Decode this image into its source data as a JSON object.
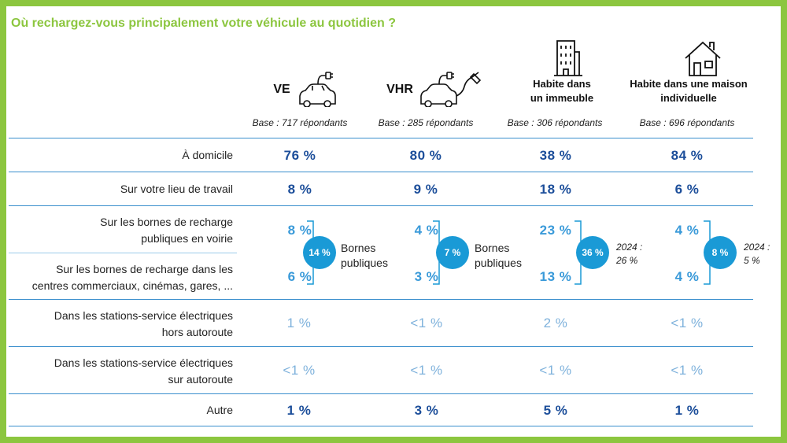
{
  "chart_data": {
    "type": "table",
    "title": "Où rechargez-vous principalement votre véhicule au quotidien ?",
    "columns": [
      {
        "name": "VE",
        "base": "Base : 717 répondants"
      },
      {
        "name": "VHR",
        "base": "Base : 285 répondants"
      },
      {
        "name": "Habite dans\nun immeuble",
        "base": "Base : 306 répondants"
      },
      {
        "name": "Habite dans une maison\nindividuelle",
        "base": "Base : 696 répondants"
      }
    ],
    "rows": [
      {
        "label": "À domicile",
        "values": [
          "76 %",
          "80 %",
          "38 %",
          "84 %"
        ]
      },
      {
        "label": "Sur votre lieu de travail",
        "values": [
          "8 %",
          "9 %",
          "18 %",
          "6 %"
        ]
      },
      {
        "label": "Sur les bornes de recharge\npubliques en voirie",
        "values": [
          "8 %",
          "4 %",
          "23 %",
          "4 %"
        ]
      },
      {
        "label": "Sur les bornes de recharge dans les\ncentres commerciaux, cinémas, gares, ...",
        "values": [
          "6 %",
          "3 %",
          "13 %",
          "4 %"
        ]
      },
      {
        "label": "Dans les stations-service électriques\nhors autoroute",
        "values": [
          "1 %",
          "<1 %",
          "2 %",
          "<1 %"
        ]
      },
      {
        "label": "Dans les stations-service électriques\nsur autoroute",
        "values": [
          "<1 %",
          "<1 %",
          "<1 %",
          "<1 %"
        ]
      },
      {
        "label": "Autre",
        "values": [
          "1 %",
          "3 %",
          "5 %",
          "1 %"
        ]
      }
    ],
    "public_totals": [
      {
        "value": "14 %",
        "note": "Bornes\npubliques"
      },
      {
        "value": "7 %",
        "note": "Bornes\npubliques"
      },
      {
        "value": "36 %",
        "note": "2024 :\n26 %"
      },
      {
        "value": "8 %",
        "note": "2024 :\n5 %"
      }
    ]
  },
  "colors": {
    "accent": "#8cc63f",
    "dark_blue": "#1c4e9a",
    "mid_blue": "#3a9ad9",
    "light_blue": "#7fb2dc",
    "circle": "#1a9ad6"
  }
}
